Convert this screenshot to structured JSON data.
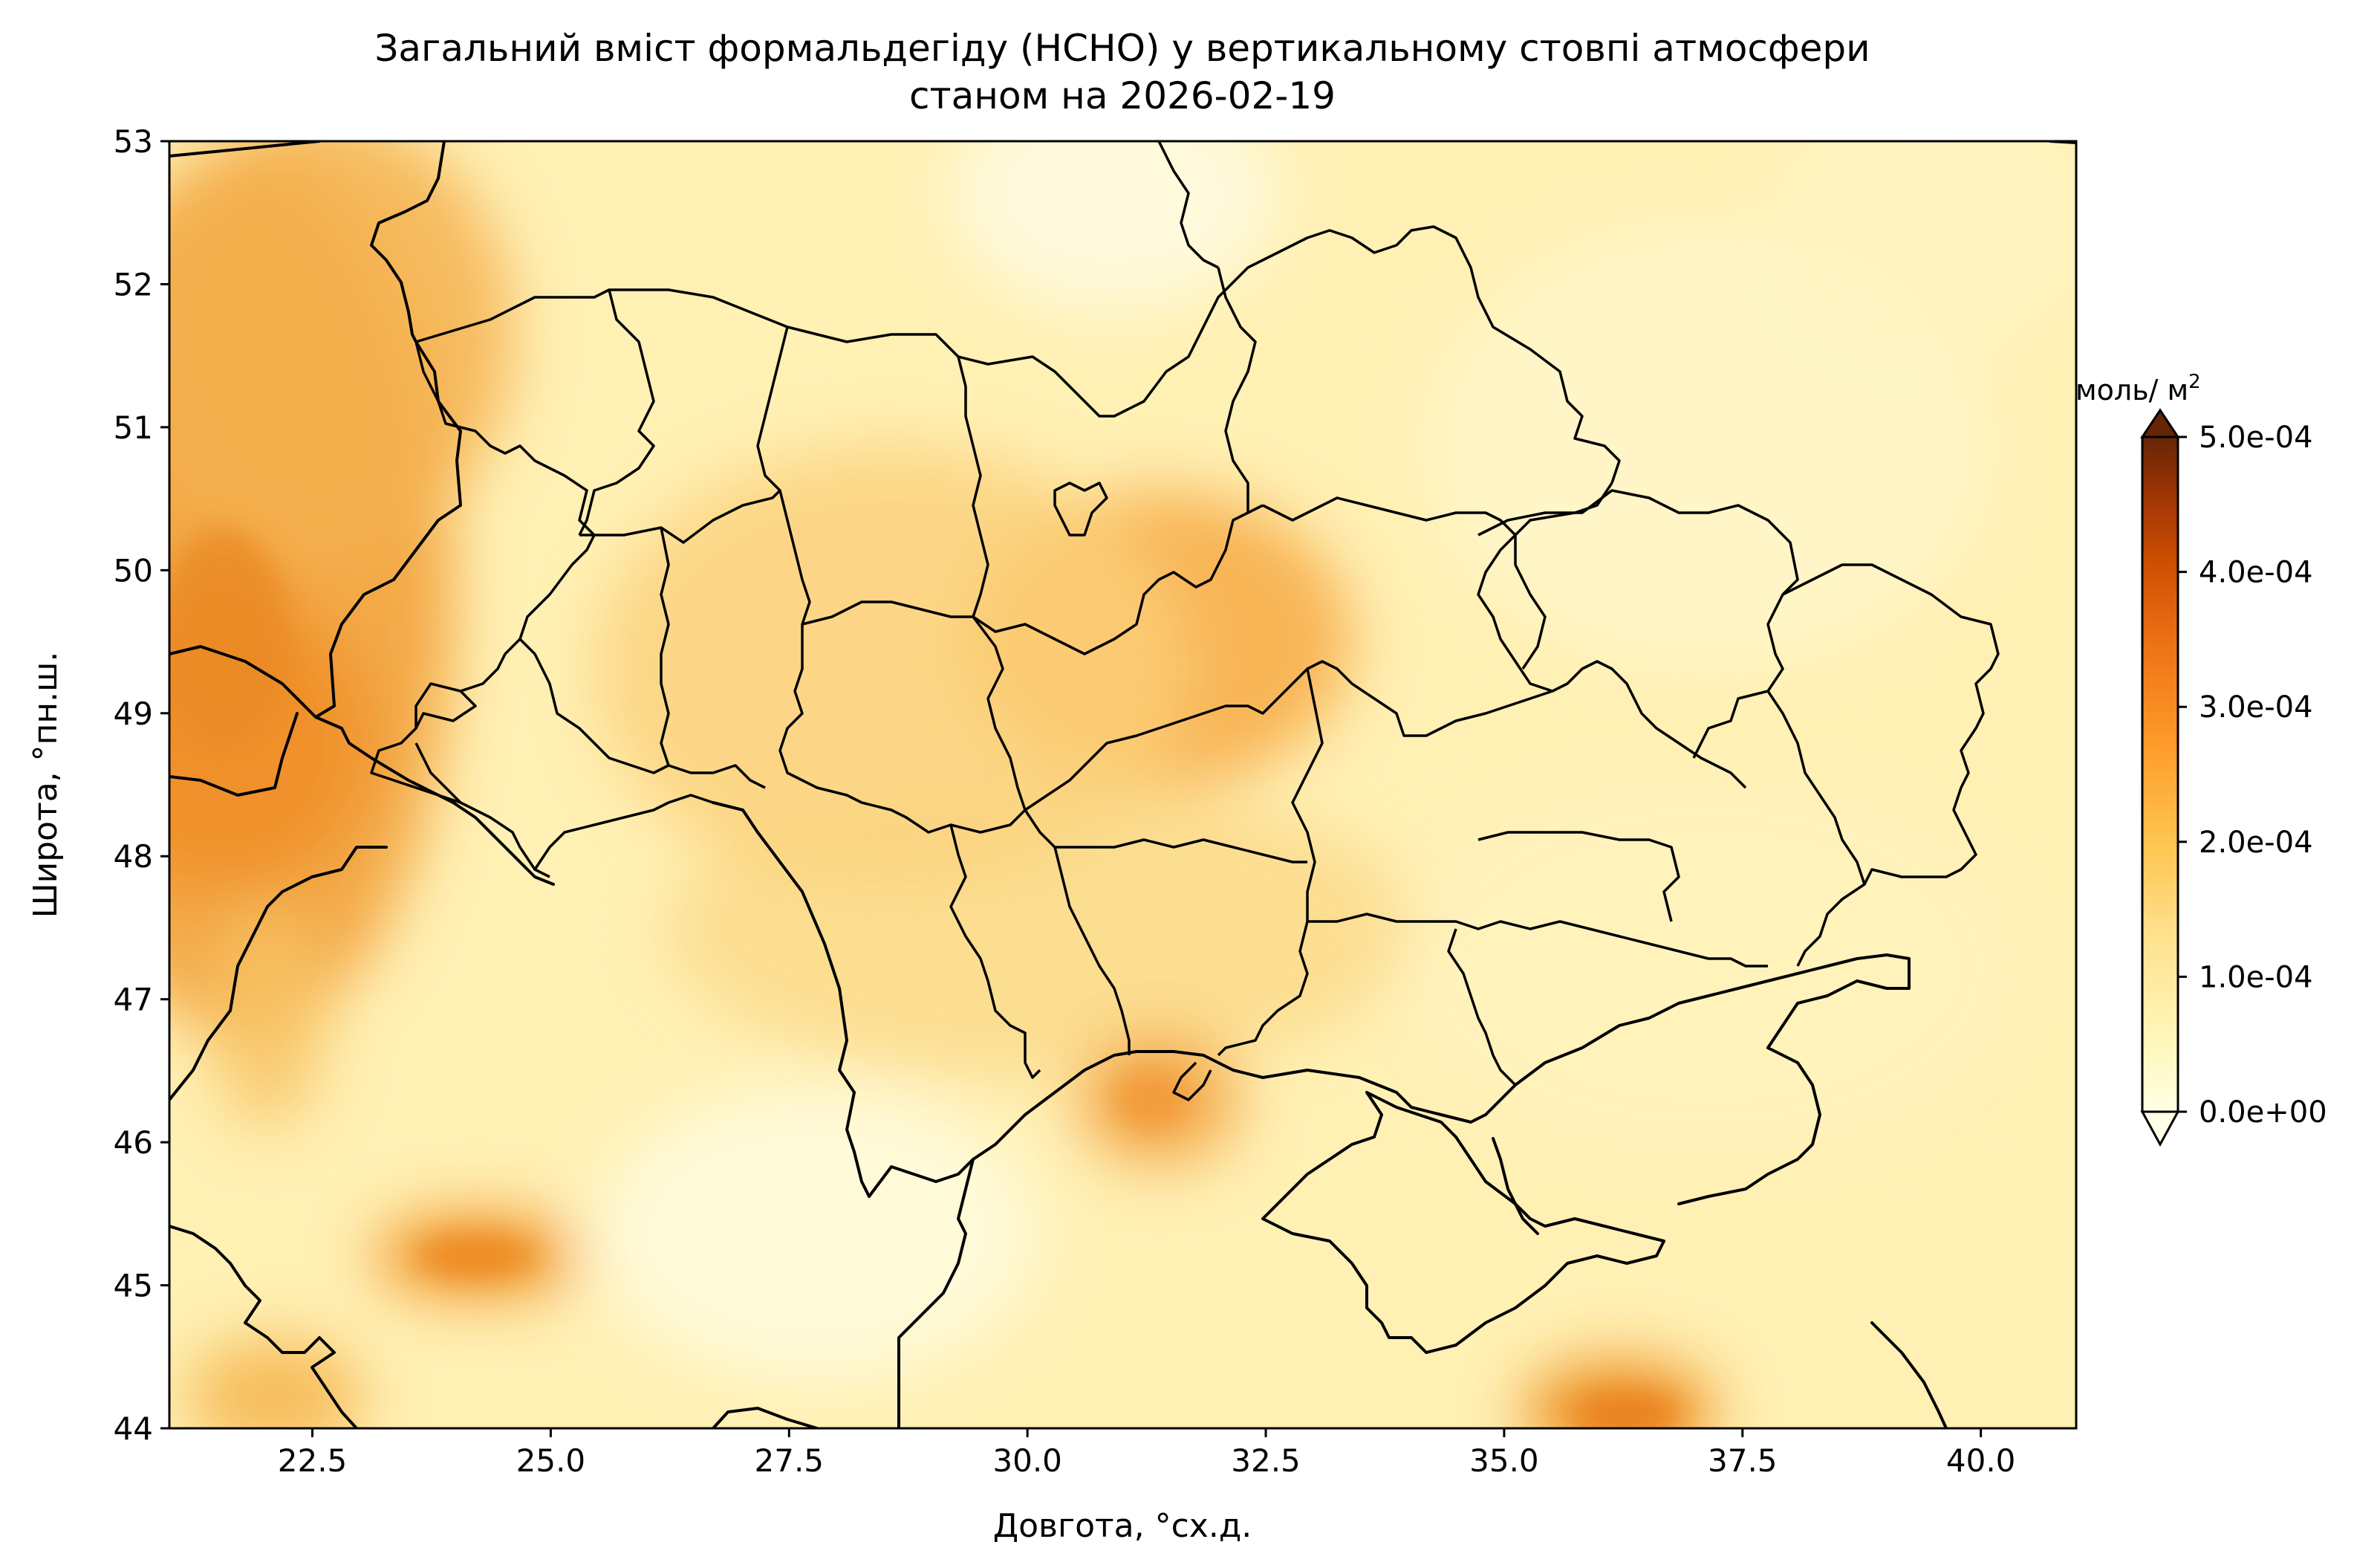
{
  "figure": {
    "title_line1": "Загальний вміст формальдегіду (HCHO) у вертикальному стовпі атмосфери",
    "title_line2": "станом на 2026-02-19",
    "xlabel": "Довгота, °сх.д.",
    "ylabel": "Широта, °пн.ш.",
    "xlim": [
      21,
      41
    ],
    "ylim": [
      44,
      53
    ],
    "xticks": [
      "22.5",
      "25.0",
      "27.5",
      "30.0",
      "32.5",
      "35.0",
      "37.5",
      "40.0"
    ],
    "yticks": [
      "44",
      "45",
      "46",
      "47",
      "48",
      "49",
      "50",
      "51",
      "52",
      "53"
    ]
  },
  "colorbar": {
    "unit_label": "моль/ м",
    "unit_sup": "2",
    "ticks": [
      "0.0e+00",
      "1.0e-04",
      "2.0e-04",
      "3.0e-04",
      "4.0e-04",
      "5.0e-04"
    ],
    "range": [
      0,
      0.0005
    ],
    "extend": "both",
    "colormap": [
      "#ffffe5",
      "#fff7bc",
      "#fee391",
      "#fec44f",
      "#fe9929",
      "#ec7014",
      "#cc4c02",
      "#993404",
      "#662506"
    ]
  },
  "chart_data": {
    "type": "heatmap",
    "title": "Загальний вміст формальдегіду (HCHO) у вертикальному стовпі атмосфери станом на 2026-02-19",
    "xlabel": "Довгота, °сх.д.",
    "ylabel": "Широта, °пн.ш.",
    "xlim": [
      21,
      41
    ],
    "ylim": [
      44,
      53
    ],
    "units": "моль/ м2",
    "vmin": 0,
    "vmax": 0.0005,
    "hotspots": [
      {
        "lon": 21.6,
        "lat": 49.6,
        "value": 0.00032
      },
      {
        "lon": 22.5,
        "lat": 51.5,
        "value": 0.00024
      },
      {
        "lon": 31.3,
        "lat": 49.6,
        "value": 0.00026
      },
      {
        "lon": 31.4,
        "lat": 46.3,
        "value": 0.00022
      },
      {
        "lon": 24.2,
        "lat": 45.2,
        "value": 0.00026
      },
      {
        "lon": 36.4,
        "lat": 44.1,
        "value": 0.00028
      },
      {
        "lon": 22.2,
        "lat": 44.1,
        "value": 0.0002
      },
      {
        "lon": 22.2,
        "lat": 47.0,
        "value": 0.00013
      }
    ],
    "background_value": 8e-05
  }
}
